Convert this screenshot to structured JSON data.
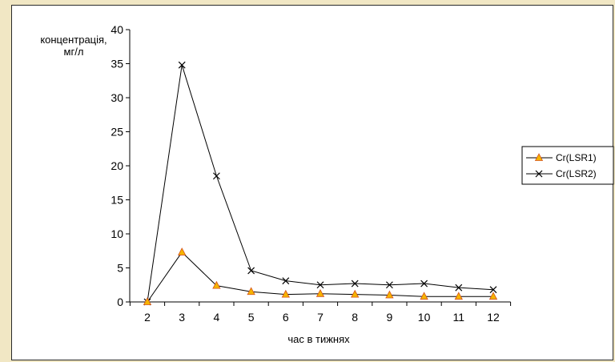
{
  "chart_data": {
    "type": "line",
    "xlabel": "час в тижнях",
    "ylabel_line1": "концентрація,",
    "ylabel_line2": "мг/л",
    "categories": [
      "2",
      "3",
      "4",
      "5",
      "6",
      "7",
      "8",
      "9",
      "10",
      "11",
      "12"
    ],
    "ylim": [
      0,
      40
    ],
    "yticks": [
      0,
      5,
      10,
      15,
      20,
      25,
      30,
      35,
      40
    ],
    "grid": false,
    "legend_position": "right",
    "series": [
      {
        "name": "Cr(LSR1)",
        "marker": "triangle",
        "marker_color": "#f5b400",
        "line_color": "#000000",
        "values": [
          0,
          7.3,
          2.4,
          1.5,
          1.1,
          1.2,
          1.1,
          1.0,
          0.8,
          0.8,
          0.8
        ]
      },
      {
        "name": "Cr(LSR2)",
        "marker": "x",
        "marker_color": "#000000",
        "line_color": "#000000",
        "values": [
          0,
          34.8,
          18.5,
          4.6,
          3.1,
          2.5,
          2.7,
          2.5,
          2.7,
          2.1,
          1.8
        ]
      }
    ]
  }
}
